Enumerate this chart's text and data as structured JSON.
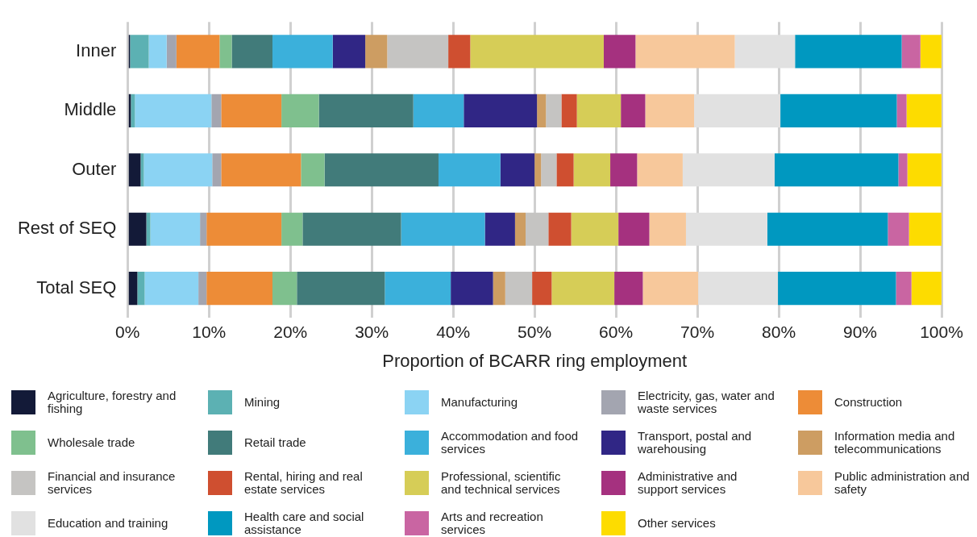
{
  "chart_data": {
    "type": "bar",
    "orientation": "horizontal",
    "stacked": true,
    "xlabel": "Proportion of BCARR ring employment",
    "categories": [
      "Inner",
      "Middle",
      "Outer",
      "Rest of SEQ",
      "Total SEQ"
    ],
    "xlim": [
      0,
      100
    ],
    "xticks": [
      {
        "value": 0,
        "label": "0%"
      },
      {
        "value": 10,
        "label": "10%"
      },
      {
        "value": 20,
        "label": "20%"
      },
      {
        "value": 30,
        "label": "30%"
      },
      {
        "value": 40,
        "label": "40%"
      },
      {
        "value": 50,
        "label": "50%"
      },
      {
        "value": 60,
        "label": "60%"
      },
      {
        "value": 70,
        "label": "70%"
      },
      {
        "value": 80,
        "label": "80%"
      },
      {
        "value": 90,
        "label": "90%"
      },
      {
        "value": 100,
        "label": "100%"
      }
    ],
    "grid": "x",
    "legend": "bottom",
    "series": [
      {
        "name": "Agriculture, forestry and fishing",
        "color": "#131a38",
        "values": [
          0.3,
          0.4,
          1.6,
          2.3,
          1.2
        ]
      },
      {
        "name": "Mining",
        "color": "#5cb1b3",
        "values": [
          2.3,
          0.5,
          0.4,
          0.5,
          0.9
        ]
      },
      {
        "name": "Manufacturing",
        "color": "#8bd3f3",
        "values": [
          2.2,
          9.4,
          8.4,
          6.1,
          6.6
        ]
      },
      {
        "name": "Electricity, gas, water and waste services",
        "color": "#a3a5b0",
        "values": [
          1.2,
          1.2,
          1.1,
          0.8,
          1.0
        ]
      },
      {
        "name": "Construction",
        "color": "#ed8c37",
        "values": [
          5.3,
          7.4,
          9.8,
          9.2,
          8.1
        ]
      },
      {
        "name": "Wholesale trade",
        "color": "#7fc08e",
        "values": [
          1.5,
          4.6,
          2.9,
          2.6,
          3.0
        ]
      },
      {
        "name": "Retail trade",
        "color": "#417b7a",
        "values": [
          5.0,
          11.6,
          14.0,
          12.1,
          10.8
        ]
      },
      {
        "name": "Accommodation and food services",
        "color": "#3bb0db",
        "values": [
          7.4,
          6.2,
          7.6,
          10.3,
          8.1
        ]
      },
      {
        "name": "Transport, postal and warehousing",
        "color": "#302685",
        "values": [
          4.0,
          9.0,
          4.2,
          3.7,
          5.2
        ]
      },
      {
        "name": "Information media and telecommunications",
        "color": "#cd9d62",
        "values": [
          2.7,
          1.1,
          0.8,
          1.3,
          1.5
        ]
      },
      {
        "name": "Financial and insurance services",
        "color": "#c5c4c2",
        "values": [
          7.5,
          1.9,
          1.9,
          2.8,
          3.3
        ]
      },
      {
        "name": "Rental, hiring and real estate services",
        "color": "#cf4f30",
        "values": [
          2.7,
          1.9,
          2.1,
          2.8,
          2.4
        ]
      },
      {
        "name": "Professional, scientific and technical services",
        "color": "#d6cd57",
        "values": [
          16.4,
          5.4,
          4.5,
          5.8,
          7.7
        ]
      },
      {
        "name": "Administrative and support services",
        "color": "#a5317f",
        "values": [
          3.9,
          3.0,
          3.3,
          3.8,
          3.5
        ]
      },
      {
        "name": "Public administration and safety",
        "color": "#f7c89b",
        "values": [
          12.2,
          6.0,
          5.6,
          4.5,
          6.8
        ]
      },
      {
        "name": "Education and training",
        "color": "#e1e1e1",
        "values": [
          7.4,
          10.6,
          11.3,
          10.0,
          9.8
        ]
      },
      {
        "name": "Health care and social assistance",
        "color": "#0098c0",
        "values": [
          13.1,
          14.3,
          15.2,
          14.8,
          14.5
        ]
      },
      {
        "name": "Arts and recreation services",
        "color": "#c965a2",
        "values": [
          2.3,
          1.2,
          1.1,
          2.6,
          1.9
        ]
      },
      {
        "name": "Other services",
        "color": "#fddc00",
        "values": [
          2.6,
          4.3,
          4.2,
          4.0,
          3.7
        ]
      }
    ]
  }
}
